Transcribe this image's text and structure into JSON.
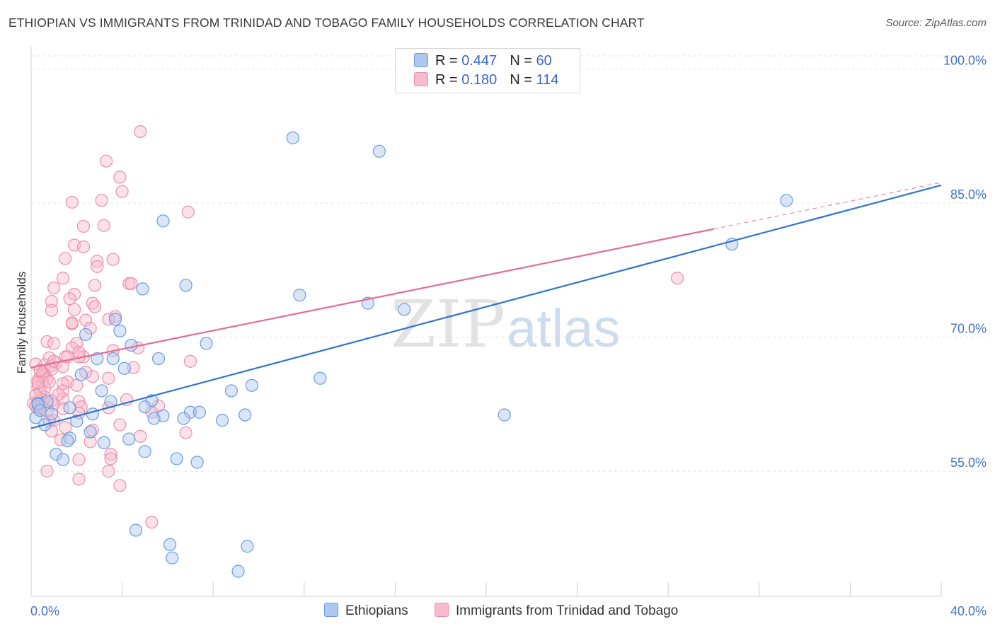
{
  "title": "ETHIOPIAN VS IMMIGRANTS FROM TRINIDAD AND TOBAGO FAMILY HOUSEHOLDS CORRELATION CHART",
  "source": "Source: ZipAtlas.com",
  "watermark": {
    "zip": "ZIP",
    "atlas": "atlas"
  },
  "colors": {
    "blue_fill": "#aec8ef",
    "blue_stroke": "#6a9be0",
    "blue_line": "#2f74d0",
    "pink_fill": "#f6bccd",
    "pink_stroke": "#ec8fab",
    "pink_line": "#e56b94",
    "grid": "#e3e3e3",
    "tick_text": "#4472c4"
  },
  "legend": {
    "blue": {
      "r_label": "R = ",
      "r_value": "0.447",
      "n_label": "N = ",
      "n_value": "60"
    },
    "pink": {
      "r_label": "R = ",
      "r_value": "0.180",
      "n_label": "N = ",
      "n_value": "114"
    }
  },
  "chart_data": {
    "type": "scatter",
    "title": "ETHIOPIAN VS IMMIGRANTS FROM TRINIDAD AND TOBAGO FAMILY HOUSEHOLDS CORRELATION CHART",
    "xlabel": "",
    "ylabel": "Family Households",
    "xlim": [
      0,
      40
    ],
    "ylim": [
      41,
      102.5
    ],
    "x_tick_labels": [
      "0.0%",
      "40.0%"
    ],
    "y_ticks": [
      55,
      70,
      85,
      100
    ],
    "y_tick_labels": [
      "55.0%",
      "70.0%",
      "85.0%",
      "100.0%"
    ],
    "grid": true,
    "legend_position": "bottom",
    "series": [
      {
        "name": "Ethiopians",
        "color": "#6a9be0",
        "trend": {
          "x0": 0,
          "y0": 59.8,
          "x1": 40,
          "y1": 87.0,
          "dashed_from": null
        },
        "points": [
          [
            11.5,
            92.3
          ],
          [
            15.3,
            90.8
          ],
          [
            33.2,
            85.3
          ],
          [
            5.8,
            83.0
          ],
          [
            30.8,
            80.4
          ],
          [
            4.9,
            75.4
          ],
          [
            6.8,
            75.8
          ],
          [
            11.8,
            74.7
          ],
          [
            14.8,
            73.8
          ],
          [
            16.4,
            73.1
          ],
          [
            3.7,
            72.0
          ],
          [
            3.9,
            70.7
          ],
          [
            2.4,
            70.3
          ],
          [
            4.4,
            69.1
          ],
          [
            7.7,
            69.3
          ],
          [
            3.6,
            67.6
          ],
          [
            2.9,
            67.6
          ],
          [
            4.1,
            66.5
          ],
          [
            5.6,
            67.6
          ],
          [
            2.2,
            65.8
          ],
          [
            12.7,
            65.4
          ],
          [
            9.7,
            64.6
          ],
          [
            8.8,
            64.0
          ],
          [
            3.1,
            64.0
          ],
          [
            5.3,
            62.9
          ],
          [
            3.5,
            62.8
          ],
          [
            0.7,
            62.8
          ],
          [
            0.3,
            62.6
          ],
          [
            1.7,
            62.1
          ],
          [
            5.0,
            62.2
          ],
          [
            7.0,
            61.6
          ],
          [
            2.7,
            61.4
          ],
          [
            6.7,
            60.9
          ],
          [
            7.4,
            61.6
          ],
          [
            9.4,
            61.3
          ],
          [
            5.8,
            61.2
          ],
          [
            20.8,
            61.3
          ],
          [
            5.4,
            60.9
          ],
          [
            0.9,
            61.4
          ],
          [
            0.2,
            61.0
          ],
          [
            2.0,
            60.6
          ],
          [
            8.4,
            60.7
          ],
          [
            0.6,
            60.2
          ],
          [
            2.6,
            59.4
          ],
          [
            1.7,
            58.7
          ],
          [
            4.3,
            58.6
          ],
          [
            3.2,
            58.2
          ],
          [
            1.1,
            56.9
          ],
          [
            5.0,
            57.2
          ],
          [
            6.4,
            56.4
          ],
          [
            7.3,
            56.0
          ],
          [
            1.4,
            56.3
          ],
          [
            4.6,
            48.4
          ],
          [
            6.1,
            46.8
          ],
          [
            6.2,
            45.3
          ],
          [
            9.5,
            46.6
          ],
          [
            9.1,
            43.8
          ],
          [
            0.3,
            62.5
          ],
          [
            0.4,
            61.8
          ],
          [
            1.6,
            58.4
          ]
        ]
      },
      {
        "name": "Immigrants from Trinidad and Tobago",
        "color": "#ec8fab",
        "trend": {
          "x0": 0,
          "y0": 66.6,
          "x1": 30.0,
          "y1": 82.1,
          "dashed_from": 30.0,
          "dashed_to": [
            40,
            87.3
          ]
        },
        "points": [
          [
            4.8,
            93.0
          ],
          [
            3.3,
            89.7
          ],
          [
            3.9,
            87.9
          ],
          [
            4.0,
            86.3
          ],
          [
            1.8,
            85.1
          ],
          [
            3.1,
            85.3
          ],
          [
            6.9,
            84.0
          ],
          [
            2.3,
            82.4
          ],
          [
            3.2,
            82.5
          ],
          [
            1.9,
            80.3
          ],
          [
            2.3,
            80.1
          ],
          [
            1.5,
            78.8
          ],
          [
            3.6,
            78.7
          ],
          [
            2.9,
            78.5
          ],
          [
            2.9,
            77.9
          ],
          [
            1.4,
            76.6
          ],
          [
            4.3,
            76.0
          ],
          [
            4.4,
            76.0
          ],
          [
            1.0,
            75.5
          ],
          [
            2.8,
            75.8
          ],
          [
            28.4,
            76.6
          ],
          [
            1.9,
            74.8
          ],
          [
            1.7,
            74.3
          ],
          [
            0.9,
            74.0
          ],
          [
            2.7,
            73.8
          ],
          [
            2.8,
            73.4
          ],
          [
            0.9,
            73.0
          ],
          [
            1.9,
            73.1
          ],
          [
            3.7,
            72.3
          ],
          [
            3.4,
            72.0
          ],
          [
            2.4,
            71.9
          ],
          [
            1.8,
            71.5
          ],
          [
            1.8,
            71.6
          ],
          [
            2.6,
            71.0
          ],
          [
            0.7,
            69.5
          ],
          [
            1.0,
            69.3
          ],
          [
            2.0,
            69.3
          ],
          [
            1.8,
            68.8
          ],
          [
            4.7,
            68.8
          ],
          [
            2.3,
            67.8
          ],
          [
            1.5,
            67.8
          ],
          [
            2.1,
            67.8
          ],
          [
            0.8,
            67.7
          ],
          [
            1.6,
            67.8
          ],
          [
            1.1,
            67.1
          ],
          [
            0.9,
            66.8
          ],
          [
            0.2,
            67.0
          ],
          [
            0.6,
            66.9
          ],
          [
            1.4,
            66.7
          ],
          [
            4.5,
            66.6
          ],
          [
            7.0,
            67.3
          ],
          [
            0.9,
            66.4
          ],
          [
            0.5,
            66.0
          ],
          [
            0.6,
            65.8
          ],
          [
            0.4,
            65.5
          ],
          [
            0.7,
            65.3
          ],
          [
            0.3,
            65.2
          ],
          [
            1.6,
            65.0
          ],
          [
            3.4,
            65.4
          ],
          [
            2.7,
            65.6
          ],
          [
            0.5,
            64.9
          ],
          [
            1.4,
            64.8
          ],
          [
            0.3,
            64.4
          ],
          [
            1.4,
            64.0
          ],
          [
            0.4,
            63.9
          ],
          [
            0.6,
            63.3
          ],
          [
            1.4,
            63.1
          ],
          [
            2.1,
            62.8
          ],
          [
            4.2,
            63.0
          ],
          [
            0.3,
            62.9
          ],
          [
            0.1,
            62.6
          ],
          [
            0.7,
            62.6
          ],
          [
            1.0,
            62.5
          ],
          [
            2.2,
            62.2
          ],
          [
            3.4,
            62.1
          ],
          [
            5.6,
            62.3
          ],
          [
            0.2,
            62.3
          ],
          [
            0.4,
            62.1
          ],
          [
            1.4,
            62.0
          ],
          [
            0.7,
            61.7
          ],
          [
            2.1,
            61.5
          ],
          [
            5.3,
            61.6
          ],
          [
            1.0,
            60.7
          ],
          [
            0.8,
            60.6
          ],
          [
            3.9,
            60.2
          ],
          [
            1.5,
            59.9
          ],
          [
            2.7,
            59.6
          ],
          [
            0.9,
            59.5
          ],
          [
            6.8,
            59.3
          ],
          [
            4.8,
            58.9
          ],
          [
            2.6,
            58.3
          ],
          [
            1.3,
            58.5
          ],
          [
            3.5,
            56.9
          ],
          [
            3.5,
            56.4
          ],
          [
            2.1,
            56.3
          ],
          [
            0.7,
            55.0
          ],
          [
            3.4,
            55.0
          ],
          [
            2.1,
            54.1
          ],
          [
            3.9,
            53.4
          ],
          [
            5.3,
            49.3
          ],
          [
            0.2,
            63.5
          ],
          [
            1.0,
            67.3
          ],
          [
            0.5,
            65.8
          ],
          [
            0.6,
            64.3
          ],
          [
            3.6,
            68.5
          ],
          [
            2.1,
            68.3
          ],
          [
            0.4,
            66.3
          ],
          [
            0.8,
            65.0
          ],
          [
            2.4,
            66.1
          ],
          [
            0.3,
            62.0
          ],
          [
            1.2,
            63.6
          ],
          [
            2.0,
            64.6
          ],
          [
            0.9,
            62.9
          ],
          [
            0.3,
            64.9
          ]
        ]
      }
    ]
  }
}
